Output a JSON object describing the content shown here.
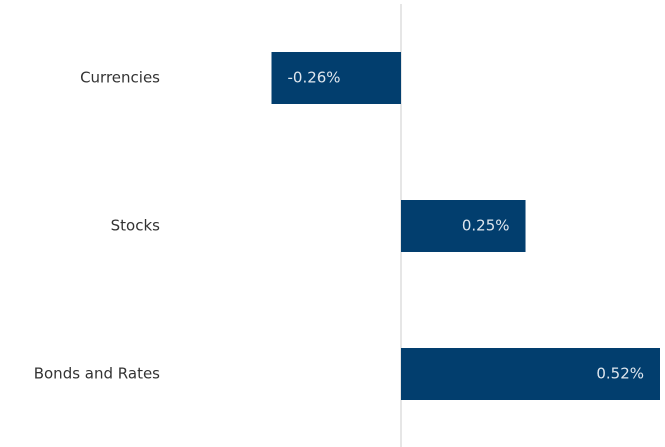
{
  "chart_data": {
    "type": "bar",
    "orientation": "horizontal",
    "categories": [
      "Currencies",
      "Stocks",
      "Bonds and Rates"
    ],
    "values": [
      -0.26,
      0.25,
      0.52
    ],
    "value_labels": [
      "-0.26%",
      "0.25%",
      "0.52%"
    ],
    "color": "#023e6e"
  }
}
